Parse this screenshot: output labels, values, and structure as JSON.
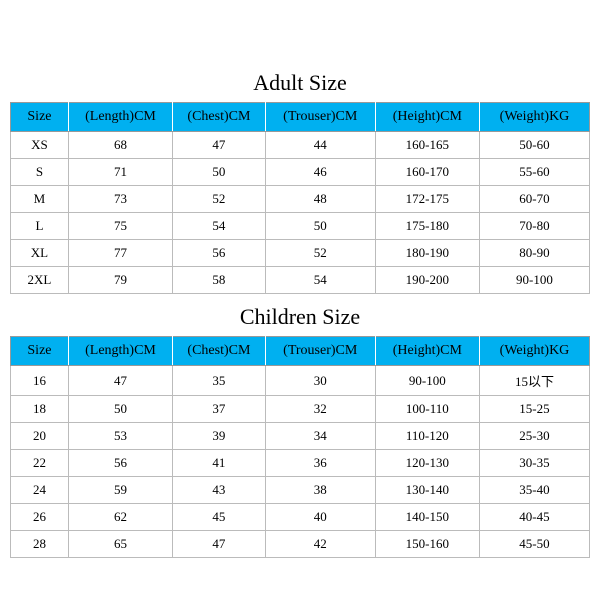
{
  "adult": {
    "title": "Adult Size",
    "columns": [
      "Size",
      "(Length)CM",
      "(Chest)CM",
      "(Trouser)CM",
      "(Height)CM",
      "(Weight)KG"
    ],
    "rows": [
      [
        "XS",
        "68",
        "47",
        "44",
        "160-165",
        "50-60"
      ],
      [
        "S",
        "71",
        "50",
        "46",
        "160-170",
        "55-60"
      ],
      [
        "M",
        "73",
        "52",
        "48",
        "172-175",
        "60-70"
      ],
      [
        "L",
        "75",
        "54",
        "50",
        "175-180",
        "70-80"
      ],
      [
        "XL",
        "77",
        "56",
        "52",
        "180-190",
        "80-90"
      ],
      [
        "2XL",
        "79",
        "58",
        "54",
        "190-200",
        "90-100"
      ]
    ]
  },
  "children": {
    "title": "Children Size",
    "columns": [
      "Size",
      "(Length)CM",
      "(Chest)CM",
      "(Trouser)CM",
      "(Height)CM",
      "(Weight)KG"
    ],
    "rows": [
      [
        "16",
        "47",
        "35",
        "30",
        "90-100",
        "15以下"
      ],
      [
        "18",
        "50",
        "37",
        "32",
        "100-110",
        "15-25"
      ],
      [
        "20",
        "53",
        "39",
        "34",
        "110-120",
        "25-30"
      ],
      [
        "22",
        "56",
        "41",
        "36",
        "120-130",
        "30-35"
      ],
      [
        "24",
        "59",
        "43",
        "38",
        "130-140",
        "35-40"
      ],
      [
        "26",
        "62",
        "45",
        "40",
        "140-150",
        "40-45"
      ],
      [
        "28",
        "65",
        "47",
        "42",
        "150-160",
        "45-50"
      ]
    ]
  },
  "style": {
    "header_bg": "#00b0f0",
    "border_color": "#bbb",
    "title_fontsize": 22,
    "header_fontsize": 14,
    "cell_fontsize": 13,
    "font_family": "Times New Roman, serif",
    "background": "#ffffff"
  }
}
